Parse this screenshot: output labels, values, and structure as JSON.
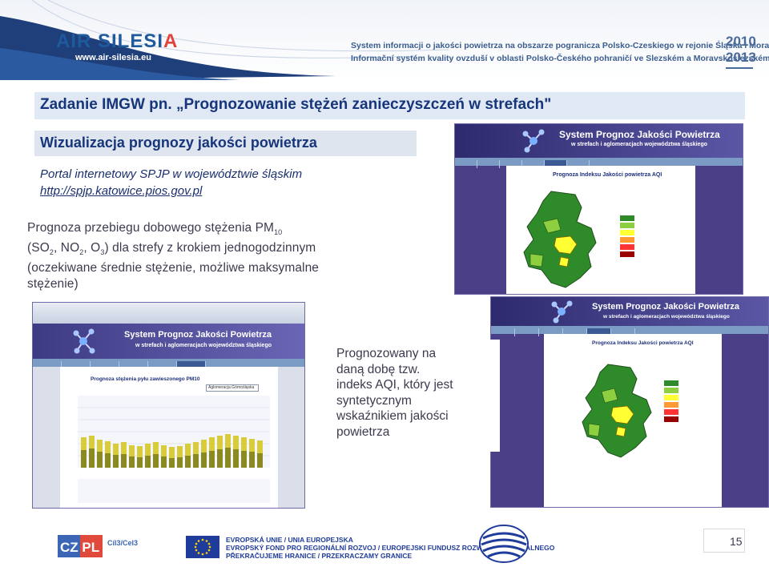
{
  "header": {
    "logo_part1": "AIR SILESI",
    "logo_part2": "A",
    "logo_url": "www.air-silesia.eu",
    "title_line1": "System informacji o jakości powietrza na obszarze pogranicza Polsko-Czeskiego w rejonie Śląska i Moraw",
    "title_line2": "Informační systém kvality ovzduší v oblasti Polsko-Českého pohraničí ve Slezském a Moravskoslezském kraji",
    "year_start": "2010",
    "year_end": "2013"
  },
  "slide": {
    "title": "Zadanie IMGW pn. „Prognozowanie stężeń zanieczyszczeń w strefach\"",
    "subtitle": "Wizualizacja prognozy jakości powietrza",
    "portal_label": "Portal internetowy SPJP w województwie śląskim",
    "portal_url": "http://spjp.katowice.pios.gov.pl",
    "forecast": {
      "line1_pre": "Prognoza przebiegu dobowego stężenia PM",
      "line1_sub": "10",
      "p_open": "(SO",
      "sub2a": "2",
      "p_no": ", NO",
      "sub2b": "2",
      "p_o": ", O",
      "sub3": "3",
      "line2_post": ") dla strefy z krokiem jednogodzinnym",
      "line3": "(oczekiwane średnie stężenie, możliwe maksymalne",
      "line4": "stężenie)"
    },
    "aqi_note": {
      "line1": "Prognozowany na",
      "line2": "daną dobę tzw.",
      "line3": "indeks AQI, który jest",
      "line4": "syntetycznym",
      "line5": "wskaźnikiem jakości",
      "line6": "powietrza"
    }
  },
  "screenshots": {
    "banner_line1": "System Prognoz Jakości Powietrza",
    "banner_line2": "w strefach i aglomeracjach województwa śląskiego",
    "aqi_heading": "Prognoza Indeksu Jakości powietrza AQI",
    "pm_heading": "Prognoza stężenia pyłu zawieszonego PM10",
    "dropdown_value": "Aglomeracja Górnośląska",
    "legend_colors": [
      "#2f8a2a",
      "#8dcf3f",
      "#ffff33",
      "#ff9933",
      "#ff3333",
      "#990000"
    ]
  },
  "footer": {
    "cz_pl": "CZ PL",
    "cil": "Cíl3/Cel3",
    "eu_line1": "EVROPSKÁ UNIE / UNIA EUROPEJSKA",
    "eu_line2": "EVROPSKÝ FOND PRO REGIONÁLNÍ ROZVOJ / EUROPEJSKI FUNDUSZ ROZWOJU REGIONALNEGO",
    "eu_line3": "PŘEKRAČUJEME HRANICE / PRZEKRACZAMY GRANICE",
    "page_number": "15"
  }
}
